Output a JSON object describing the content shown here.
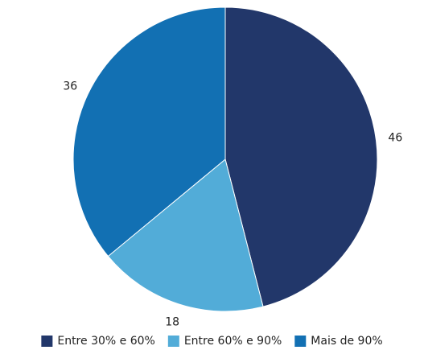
{
  "chart_data": {
    "type": "pie",
    "categories": [
      "Entre 30% e 60%",
      "Entre 60% e 90%",
      "Mais de 90%"
    ],
    "values": [
      46,
      18,
      36
    ],
    "colors": [
      "#22376a",
      "#52acd8",
      "#1270b3"
    ],
    "legend": "bottom"
  }
}
